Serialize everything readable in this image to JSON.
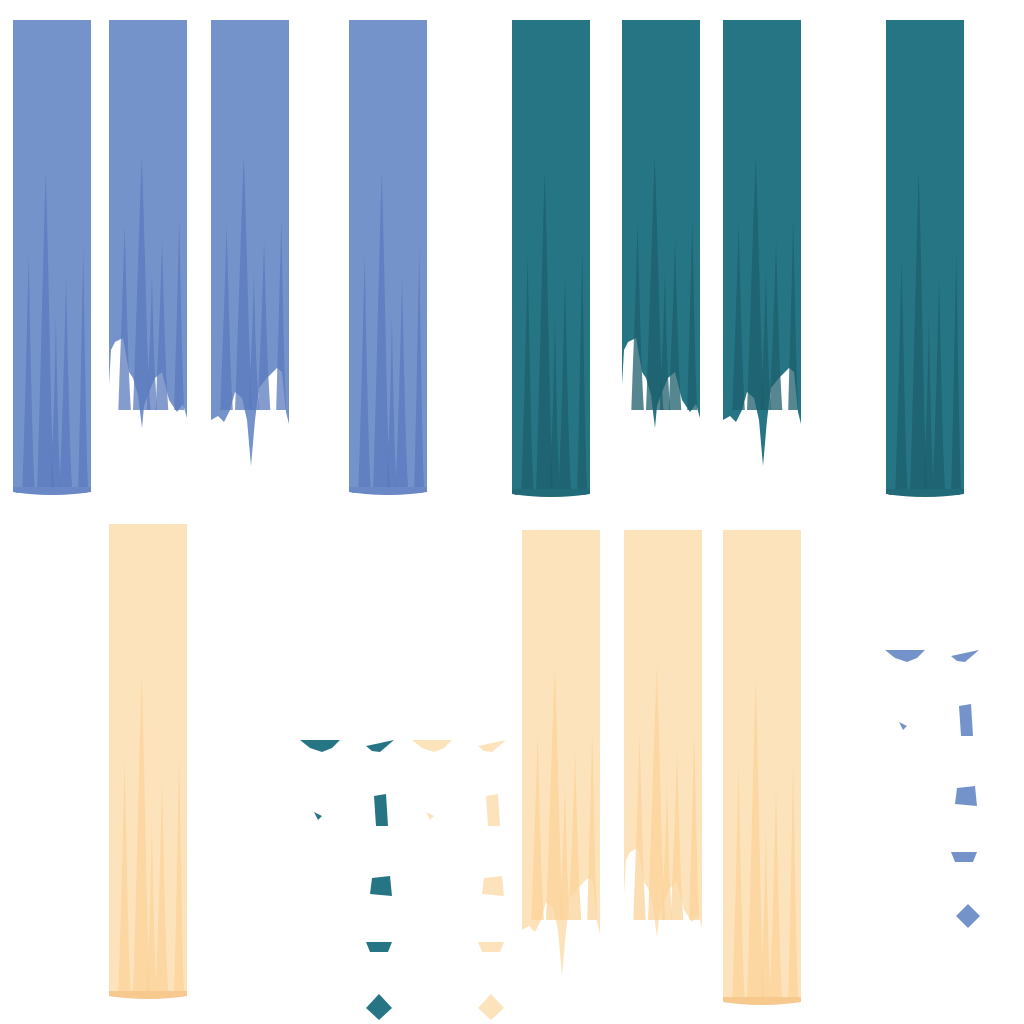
{
  "palette": {
    "blue": {
      "base": "#7593cb",
      "fold": "#5b79bd",
      "edge": "#6a88c6"
    },
    "teal": {
      "base": "#267585",
      "fold": "#1d5f6c",
      "edge": "#216a78"
    },
    "cream": {
      "base": "#fde3bb",
      "fold": "#fbd39a",
      "edge": "#f7c98f"
    }
  },
  "sprite_sheet": {
    "curtain_variants": [
      "full",
      "torn-short",
      "torn-long"
    ],
    "fragment_shapes": [
      "scrap-wide",
      "scrap-flag",
      "scrap-small",
      "scrap-strip",
      "scrap-chunk",
      "scrap-band",
      "scrap-diamond"
    ],
    "curtains": [
      {
        "color": "blue",
        "variant": "full"
      },
      {
        "color": "blue",
        "variant": "torn-short"
      },
      {
        "color": "blue",
        "variant": "torn-long"
      },
      {
        "color": "blue",
        "variant": "full"
      },
      {
        "color": "teal",
        "variant": "full"
      },
      {
        "color": "teal",
        "variant": "torn-short"
      },
      {
        "color": "teal",
        "variant": "torn-long"
      },
      {
        "color": "teal",
        "variant": "full"
      },
      {
        "color": "cream",
        "variant": "full"
      },
      {
        "color": "cream",
        "variant": "torn-long"
      },
      {
        "color": "cream",
        "variant": "torn-short"
      },
      {
        "color": "cream",
        "variant": "full"
      }
    ],
    "fragment_sets": [
      {
        "color": "teal"
      },
      {
        "color": "cream"
      },
      {
        "color": "blue"
      }
    ]
  }
}
